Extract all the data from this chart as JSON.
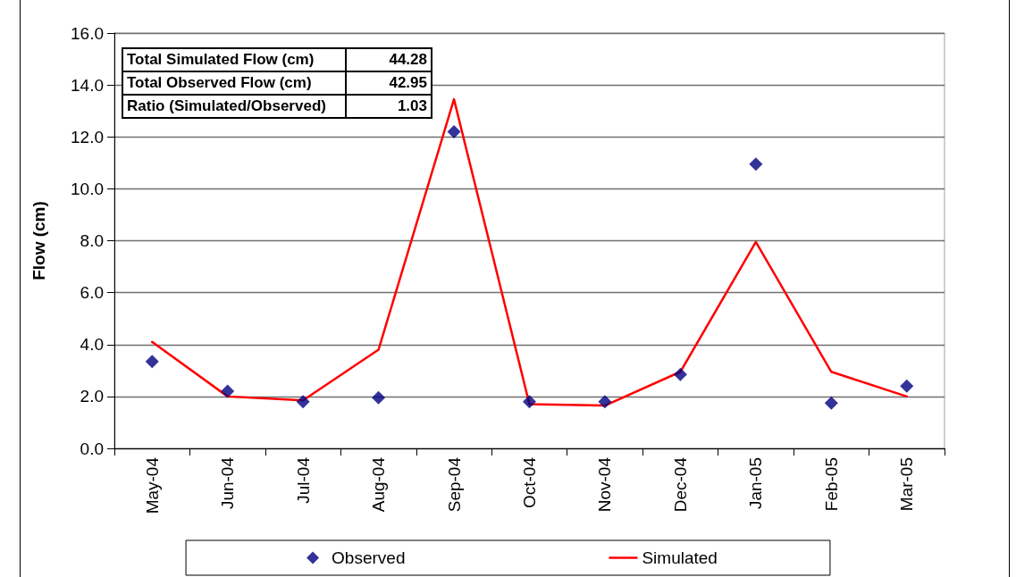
{
  "chart_data": {
    "type": "line",
    "ylabel": "Flow (cm)",
    "categories": [
      "May-04",
      "Jun-04",
      "Jul-04",
      "Aug-04",
      "Sep-04",
      "Oct-04",
      "Nov-04",
      "Dec-04",
      "Jan-05",
      "Feb-05",
      "Mar-05"
    ],
    "series": [
      {
        "name": "Observed",
        "type": "scatter",
        "marker": "diamond",
        "color": "#000080",
        "values": [
          3.35,
          2.2,
          1.8,
          1.95,
          12.2,
          1.8,
          1.8,
          2.85,
          10.95,
          1.75,
          2.4
        ]
      },
      {
        "name": "Simulated",
        "marker": "none",
        "line_style": "solid",
        "color": "#ff0000",
        "values": [
          4.1,
          2.0,
          1.85,
          3.8,
          13.45,
          1.7,
          1.65,
          2.95,
          7.95,
          2.95,
          2.0
        ]
      }
    ],
    "ylim": [
      0,
      16
    ],
    "yticks": [
      {
        "value": 0,
        "label": "0.0"
      },
      {
        "value": 2,
        "label": "2.0"
      },
      {
        "value": 4,
        "label": "4.0"
      },
      {
        "value": 6,
        "label": "6.0"
      },
      {
        "value": 8,
        "label": "8.0"
      },
      {
        "value": 10,
        "label": "10.0"
      },
      {
        "value": 12,
        "label": "12.0"
      },
      {
        "value": 14,
        "label": "14.0"
      },
      {
        "value": 16,
        "label": "16.0"
      }
    ],
    "grid": "y",
    "legend": "bottom",
    "annotations": [
      "Total Simulated Flow (cm)",
      "44.28",
      "Total Observed Flow (cm)",
      "42.95",
      "Ratio (Simulated/Observed)",
      "1.03"
    ]
  }
}
